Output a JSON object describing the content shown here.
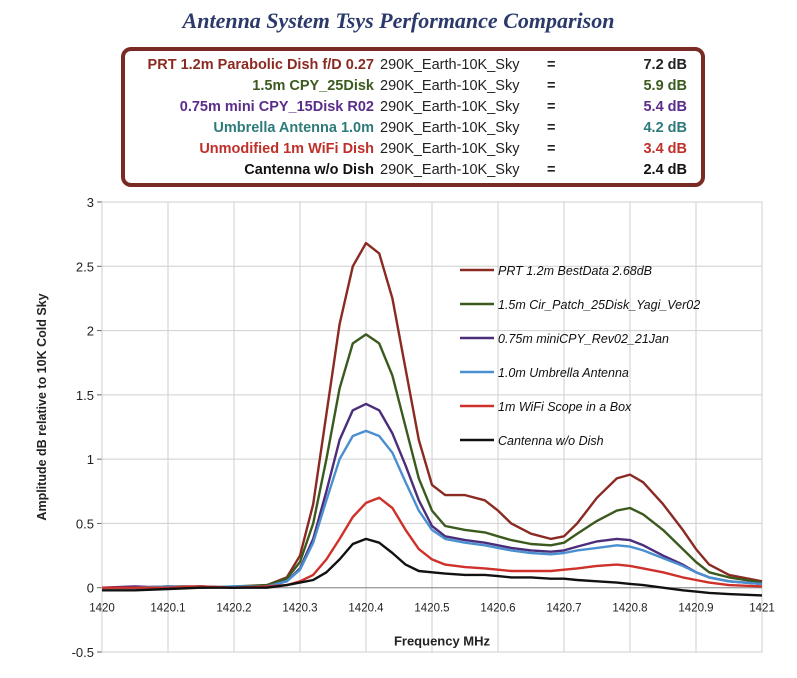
{
  "title": "Antenna System Tsys Performance Comparison",
  "summary": [
    {
      "name": "PRT 1.2m Parabolic Dish f/D 0.27",
      "condition": "290K_Earth-10K_Sky",
      "eq": "=",
      "value": "7.2 dB",
      "color": "#8b2a22",
      "valcolor": "#222222"
    },
    {
      "name": "1.5m CPY_25Disk",
      "condition": "290K_Earth-10K_Sky",
      "eq": "=",
      "value": "5.9 dB",
      "color": "#3b5a1e",
      "valcolor": "#3b5a1e"
    },
    {
      "name": "0.75m mini CPY_15Disk R02",
      "condition": "290K_Earth-10K_Sky",
      "eq": "=",
      "value": "5.4 dB",
      "color": "#5b2d8a",
      "valcolor": "#5b2d8a"
    },
    {
      "name": "Umbrella Antenna 1.0m",
      "condition": "290K_Earth-10K_Sky",
      "eq": "=",
      "value": "4.2 dB",
      "color": "#2f7a7a",
      "valcolor": "#2f7a7a"
    },
    {
      "name": "Unmodified 1m WiFi Dish",
      "condition": "290K_Earth-10K_Sky",
      "eq": "=",
      "value": "3.4 dB",
      "color": "#c0302a",
      "valcolor": "#c0302a"
    },
    {
      "name": "Cantenna w/o Dish",
      "condition": "290K_Earth-10K_Sky",
      "eq": "=",
      "value": "2.4 dB",
      "color": "#111111",
      "valcolor": "#111111"
    }
  ],
  "chart_data": {
    "type": "line",
    "title": "",
    "xlabel": "Frequency MHz",
    "ylabel": "Amplitude dB relative to 10K Cold Sky",
    "xlim": [
      1420.0,
      1421.0
    ],
    "ylim": [
      -0.5,
      3.0
    ],
    "x_ticks": [
      "1420",
      "1420.1",
      "1420.2",
      "1420.3",
      "1420.4",
      "1420.5",
      "1420.6",
      "1420.7",
      "1420.8",
      "1420.9",
      "1421"
    ],
    "x_tick_values": [
      1420.0,
      1420.1,
      1420.2,
      1420.3,
      1420.4,
      1420.5,
      1420.6,
      1420.7,
      1420.8,
      1420.9,
      1421.0
    ],
    "y_ticks": [
      "-0.5",
      "0",
      "0.5",
      "1",
      "1.5",
      "2",
      "2.5",
      "3"
    ],
    "y_tick_values": [
      -0.5,
      0,
      0.5,
      1,
      1.5,
      2,
      2.5,
      3
    ],
    "grid": true,
    "legend_position": "right",
    "x": [
      1420.0,
      1420.05,
      1420.1,
      1420.15,
      1420.2,
      1420.25,
      1420.28,
      1420.3,
      1420.32,
      1420.34,
      1420.36,
      1420.38,
      1420.4,
      1420.42,
      1420.44,
      1420.46,
      1420.48,
      1420.5,
      1420.52,
      1420.55,
      1420.58,
      1420.6,
      1420.62,
      1420.65,
      1420.68,
      1420.7,
      1420.72,
      1420.75,
      1420.78,
      1420.8,
      1420.82,
      1420.85,
      1420.88,
      1420.9,
      1420.92,
      1420.95,
      1421.0
    ],
    "series": [
      {
        "name": "PRT 1.2m BestData 2.68dB",
        "color": "#8b2a22",
        "values": [
          0.0,
          0.0,
          0.01,
          0.01,
          0.0,
          0.02,
          0.08,
          0.25,
          0.65,
          1.35,
          2.05,
          2.5,
          2.68,
          2.6,
          2.25,
          1.7,
          1.15,
          0.8,
          0.72,
          0.72,
          0.68,
          0.6,
          0.5,
          0.42,
          0.38,
          0.4,
          0.5,
          0.7,
          0.85,
          0.88,
          0.82,
          0.65,
          0.45,
          0.3,
          0.18,
          0.1,
          0.05
        ]
      },
      {
        "name": "1.5m Cir_Patch_25Disk_Yagi_Ver02",
        "color": "#3b5a1e",
        "values": [
          0.0,
          0.0,
          0.01,
          0.0,
          0.01,
          0.02,
          0.07,
          0.2,
          0.5,
          1.0,
          1.55,
          1.9,
          1.97,
          1.9,
          1.65,
          1.25,
          0.85,
          0.6,
          0.48,
          0.45,
          0.43,
          0.4,
          0.37,
          0.34,
          0.33,
          0.35,
          0.42,
          0.52,
          0.6,
          0.62,
          0.57,
          0.45,
          0.3,
          0.2,
          0.12,
          0.08,
          0.04
        ]
      },
      {
        "name": "0.75m miniCPY_Rev02_21Jan",
        "color": "#4b2d7a",
        "values": [
          0.0,
          0.01,
          0.0,
          0.01,
          0.0,
          0.01,
          0.05,
          0.15,
          0.38,
          0.75,
          1.15,
          1.38,
          1.43,
          1.38,
          1.2,
          0.95,
          0.68,
          0.48,
          0.4,
          0.37,
          0.35,
          0.33,
          0.31,
          0.29,
          0.28,
          0.29,
          0.32,
          0.36,
          0.38,
          0.37,
          0.33,
          0.25,
          0.18,
          0.12,
          0.08,
          0.05,
          0.03
        ]
      },
      {
        "name": "1.0m Umbrella Antenna",
        "color": "#4a8fd0",
        "values": [
          0.0,
          0.0,
          0.01,
          0.0,
          0.01,
          0.01,
          0.05,
          0.14,
          0.35,
          0.68,
          1.0,
          1.18,
          1.22,
          1.18,
          1.05,
          0.82,
          0.6,
          0.45,
          0.38,
          0.35,
          0.33,
          0.31,
          0.29,
          0.27,
          0.26,
          0.27,
          0.29,
          0.31,
          0.33,
          0.32,
          0.29,
          0.23,
          0.17,
          0.12,
          0.08,
          0.05,
          0.03
        ]
      },
      {
        "name": "1m WiFi Scope in a Box",
        "color": "#d0302a",
        "values": [
          0.0,
          0.0,
          0.0,
          0.01,
          0.0,
          0.01,
          0.02,
          0.05,
          0.1,
          0.22,
          0.38,
          0.55,
          0.66,
          0.7,
          0.62,
          0.45,
          0.3,
          0.22,
          0.18,
          0.16,
          0.15,
          0.14,
          0.13,
          0.13,
          0.13,
          0.14,
          0.15,
          0.17,
          0.18,
          0.17,
          0.15,
          0.12,
          0.08,
          0.06,
          0.04,
          0.02,
          0.01
        ]
      },
      {
        "name": "Cantenna w/o Dish",
        "color": "#111111",
        "values": [
          -0.02,
          -0.02,
          -0.01,
          0.0,
          0.0,
          0.0,
          0.02,
          0.04,
          0.06,
          0.12,
          0.22,
          0.34,
          0.38,
          0.35,
          0.27,
          0.18,
          0.13,
          0.12,
          0.11,
          0.1,
          0.1,
          0.09,
          0.08,
          0.08,
          0.07,
          0.07,
          0.06,
          0.05,
          0.04,
          0.03,
          0.02,
          0.0,
          -0.02,
          -0.03,
          -0.04,
          -0.05,
          -0.06
        ]
      }
    ]
  }
}
